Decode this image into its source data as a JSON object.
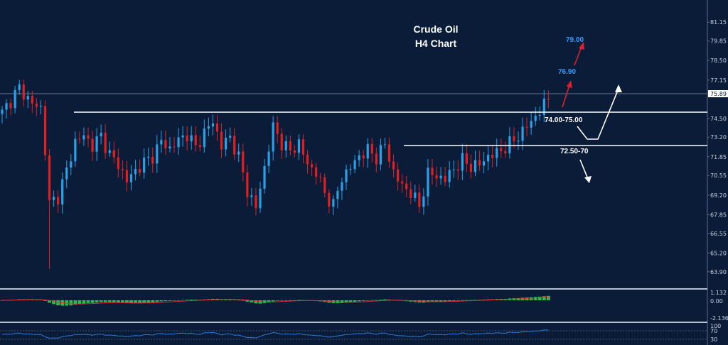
{
  "chart_data": {
    "type": "candlestick",
    "title": "Crude Oil",
    "subtitle": "H4 Chart",
    "y_ticks": [
      "81.15",
      "79.85",
      "78.50",
      "77.15",
      "75.89",
      "74.50",
      "73.20",
      "71.85",
      "70.55",
      "69.20",
      "67.85",
      "66.55",
      "65.20",
      "63.90"
    ],
    "current_price": "75.89",
    "ylim": [
      63.25,
      81.8
    ],
    "price_path": [
      [
        0,
        74.9
      ],
      [
        4,
        76.6
      ],
      [
        7,
        75.5
      ],
      [
        9,
        75.2
      ],
      [
        10,
        72.3
      ],
      [
        11,
        68.6
      ],
      [
        13,
        69.1
      ],
      [
        15,
        70.9
      ],
      [
        17,
        72.9
      ],
      [
        19,
        73.3
      ],
      [
        21,
        72.6
      ],
      [
        23,
        73.3
      ],
      [
        25,
        72.0
      ],
      [
        27,
        71.3
      ],
      [
        29,
        70.2
      ],
      [
        32,
        71.2
      ],
      [
        35,
        71.9
      ],
      [
        37,
        72.9
      ],
      [
        39,
        72.4
      ],
      [
        41,
        73.0
      ],
      [
        43,
        73.4
      ],
      [
        45,
        72.5
      ],
      [
        47,
        73.5
      ],
      [
        49,
        74.3
      ],
      [
        51,
        72.6
      ],
      [
        53,
        73.2
      ],
      [
        55,
        71.8
      ],
      [
        57,
        69.5
      ],
      [
        59,
        68.3
      ],
      [
        61,
        71.1
      ],
      [
        63,
        73.9
      ],
      [
        65,
        72.8
      ],
      [
        67,
        72.2
      ],
      [
        69,
        72.8
      ],
      [
        71,
        71.3
      ],
      [
        73,
        70.8
      ],
      [
        75,
        69.3
      ],
      [
        77,
        68.5
      ],
      [
        79,
        70.4
      ],
      [
        81,
        71.1
      ],
      [
        83,
        71.9
      ],
      [
        85,
        72.3
      ],
      [
        87,
        71.8
      ],
      [
        89,
        72.7
      ],
      [
        91,
        70.8
      ],
      [
        93,
        69.8
      ],
      [
        95,
        69.4
      ],
      [
        97,
        68.4
      ],
      [
        99,
        70.7
      ],
      [
        101,
        70.5
      ],
      [
        103,
        70.3
      ],
      [
        105,
        71.0
      ],
      [
        107,
        71.6
      ],
      [
        109,
        71.2
      ],
      [
        111,
        71.3
      ],
      [
        113,
        71.9
      ],
      [
        115,
        72.1
      ],
      [
        117,
        72.5
      ],
      [
        119,
        73.0
      ],
      [
        121,
        73.6
      ],
      [
        123,
        74.3
      ],
      [
        125,
        75.0
      ],
      [
        127,
        75.9
      ]
    ],
    "levels": [
      {
        "value": 74.69,
        "label": "74.00-75.00"
      },
      {
        "value": 72.5,
        "label": "72.50-70"
      }
    ],
    "targets": [
      "76.90",
      "79.00"
    ],
    "macd": {
      "ticks": [
        "1.132",
        "0.00",
        "-2.136"
      ]
    },
    "rsi": {
      "ticks": [
        "100",
        "70",
        "30"
      ]
    },
    "grid": false
  },
  "colors": {
    "background": "#0b1c38",
    "bullish": "#2aa0e6",
    "bearish": "#e02020",
    "histogram": "#2dbd4e",
    "signal": "#e03030",
    "level_line": "#ffffff",
    "target_arrow": "#e02030",
    "target_text": "#2f9bff",
    "rsi_line": "#2a7ad8"
  }
}
